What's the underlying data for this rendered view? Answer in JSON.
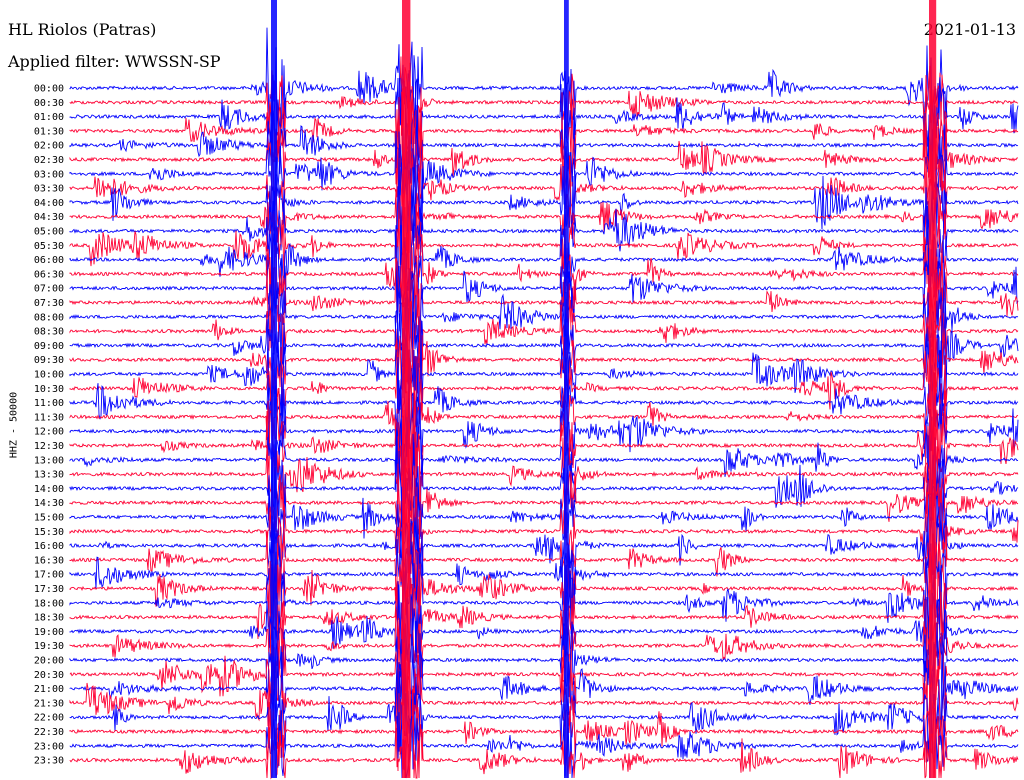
{
  "header": {
    "station": "HL Riolos (Patras)",
    "filter": "Applied filter: WWSSN-SP",
    "date": "2021-01-13"
  },
  "chart_data": {
    "type": "line",
    "title": "HL Riolos (Patras)",
    "subtitle": "Applied filter: WWSSN-SP",
    "ylabel": "HHZ - 50000",
    "xlabel": "",
    "row_labels": [
      "00:00",
      "00:30",
      "01:00",
      "01:30",
      "02:00",
      "02:30",
      "03:00",
      "03:30",
      "04:00",
      "04:30",
      "05:00",
      "05:30",
      "06:00",
      "06:30",
      "07:00",
      "07:30",
      "08:00",
      "08:30",
      "09:00",
      "09:30",
      "10:00",
      "10:30",
      "11:00",
      "11:30",
      "12:00",
      "12:30",
      "13:00",
      "13:30",
      "14:00",
      "14:30",
      "15:00",
      "15:30",
      "16:00",
      "16:30",
      "17:00",
      "17:30",
      "18:00",
      "18:30",
      "19:00",
      "19:30",
      "20:00",
      "20:30",
      "21:00",
      "21:30",
      "22:00",
      "22:30",
      "23:00",
      "23:30"
    ],
    "trace_colors": [
      "#0000ff",
      "#ff0033"
    ],
    "grid": false
  }
}
